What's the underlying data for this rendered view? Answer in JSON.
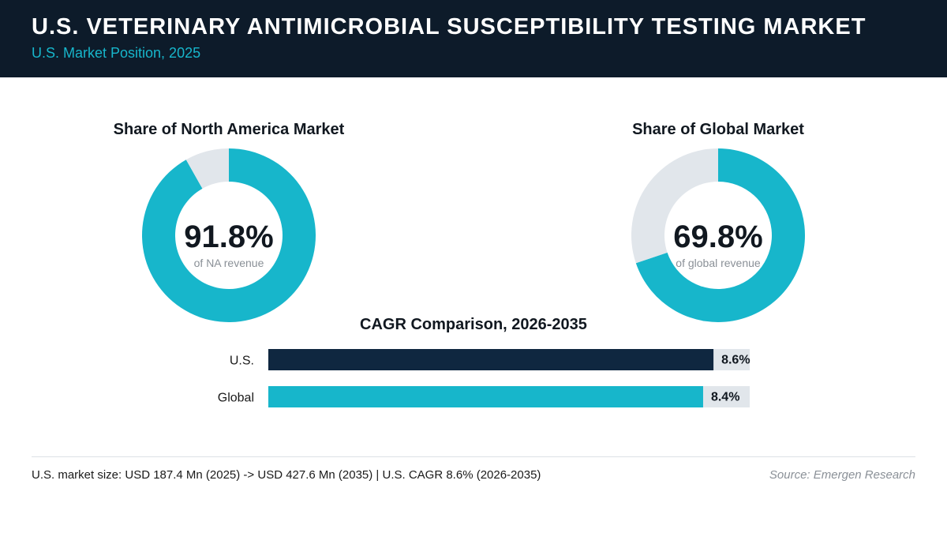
{
  "header": {
    "title": "U.S. VETERINARY ANTIMICROBIAL SUSCEPTIBILITY TESTING MARKET",
    "subtitle": "U.S. Market Position, 2025"
  },
  "colors": {
    "header_bg": "#0d1b2a",
    "accent": "#17b6cb",
    "navy": "#0f2740",
    "track": "#e1e6eb"
  },
  "chart_data": [
    {
      "type": "pie",
      "title": "Share of North America Market",
      "value": 91.8,
      "value_label": "91.8%",
      "sublabel": "of NA revenue",
      "slices": [
        {
          "value": 91.8,
          "color": "#17b6cb"
        },
        {
          "value": 8.2,
          "color": "#e1e6eb"
        }
      ]
    },
    {
      "type": "pie",
      "title": "Share of Global Market",
      "value": 69.8,
      "value_label": "69.8%",
      "sublabel": "of global revenue",
      "slices": [
        {
          "value": 69.8,
          "color": "#17b6cb"
        },
        {
          "value": 30.2,
          "color": "#e1e6eb"
        }
      ]
    },
    {
      "type": "bar",
      "orientation": "horizontal",
      "title": "CAGR Comparison, 2026-2035",
      "categories": [
        "U.S.",
        "Global"
      ],
      "values": [
        8.6,
        8.4
      ],
      "value_labels": [
        "8.6%",
        "8.4%"
      ],
      "colors": [
        "#0f2740",
        "#17b6cb"
      ],
      "xlim": [
        0,
        9.3
      ]
    }
  ],
  "footer": {
    "note": "U.S. market size: USD 187.4 Mn (2025) -> USD 427.6 Mn (2035)  |  U.S. CAGR 8.6% (2026-2035)",
    "source": "Source: Emergen Research"
  }
}
